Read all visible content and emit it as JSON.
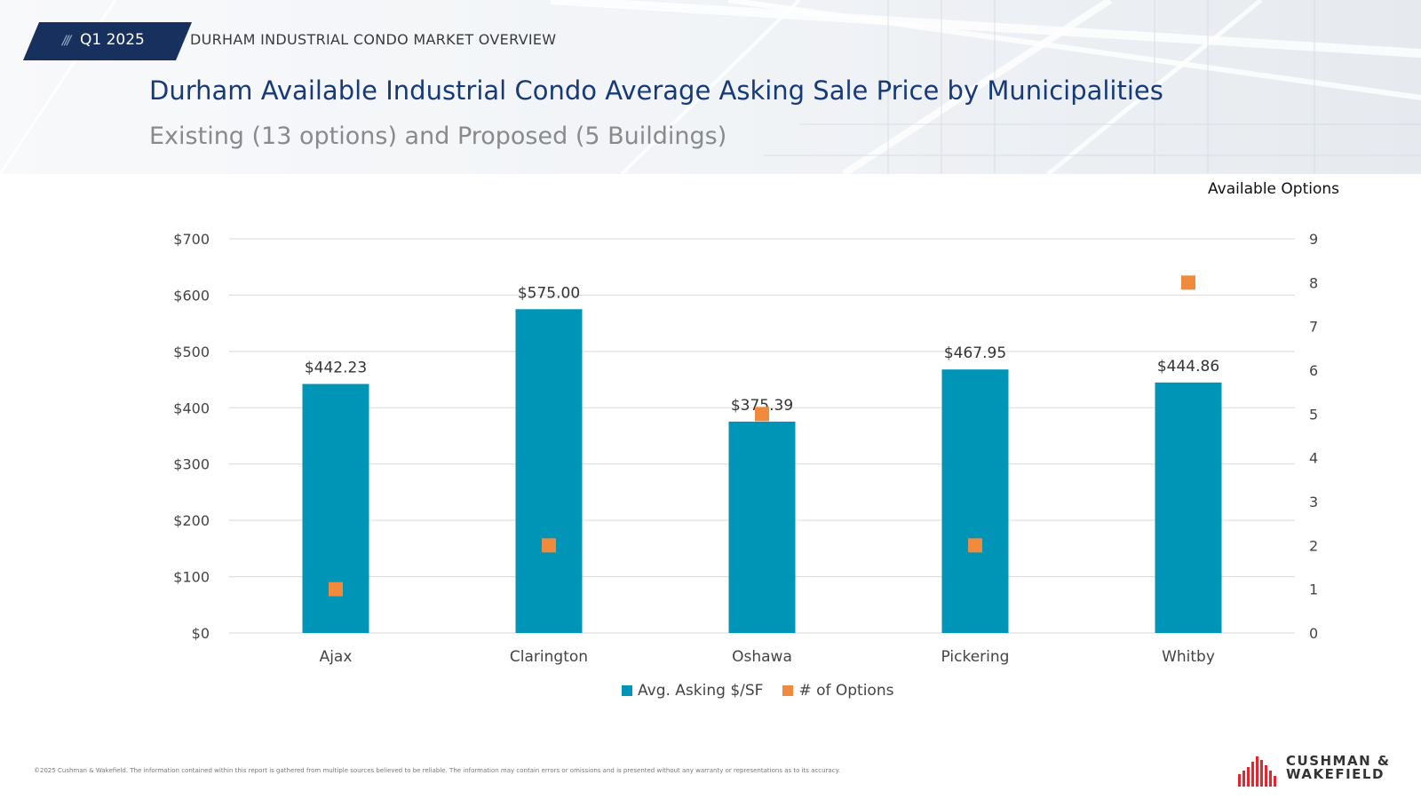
{
  "header": {
    "period_tag": "Q1 2025",
    "report_name": "DURHAM INDUSTRIAL CONDO MARKET OVERVIEW",
    "title": "Durham Available Industrial Condo Average Asking Sale Price by Municipalities",
    "subtitle": "Existing (13 options) and Proposed (5 Buildings)"
  },
  "chart_data": {
    "type": "bar",
    "categories": [
      "Ajax",
      "Clarington",
      "Oshawa",
      "Pickering",
      "Whitby"
    ],
    "series": [
      {
        "name": "Avg. Asking $/SF",
        "type": "bar",
        "axis": "left",
        "values": [
          442.23,
          575.0,
          375.39,
          467.95,
          444.86
        ],
        "labels": [
          "$442.23",
          "$575.00",
          "$375.39",
          "$467.95",
          "$444.86"
        ]
      },
      {
        "name": "# of Options",
        "type": "marker",
        "axis": "right",
        "values": [
          1,
          2,
          5,
          2,
          8
        ]
      }
    ],
    "ylim": [
      0,
      700
    ],
    "y_ticks": [
      "$0",
      "$100",
      "$200",
      "$300",
      "$400",
      "$500",
      "$600",
      "$700"
    ],
    "y2label": "Available Options",
    "y2lim": [
      0,
      9
    ],
    "y2_ticks": [
      "0",
      "1",
      "2",
      "3",
      "4",
      "5",
      "6",
      "7",
      "8",
      "9"
    ],
    "grid": true,
    "legend": "bottom",
    "colors": {
      "bar": "#0095b7",
      "marker": "#f08a3c"
    }
  },
  "footer": {
    "disclaimer": "©2025 Cushman & Wakefield. The information contained within this report is gathered from multiple sources believed to be reliable. The information may contain errors or omissions and is presented without any warranty or representations as to its accuracy."
  },
  "logo": {
    "line1": "CUSHMAN &",
    "line2": "WAKEFIELD",
    "color": "#e4262f"
  }
}
